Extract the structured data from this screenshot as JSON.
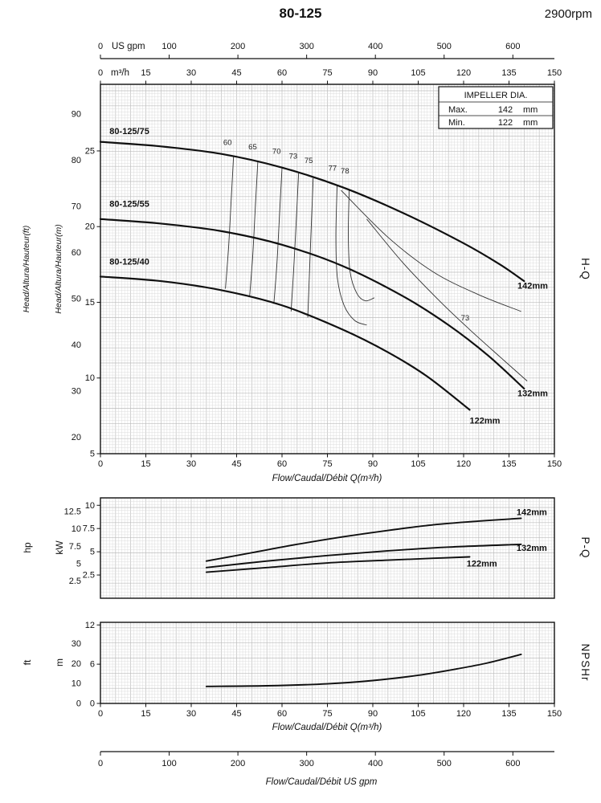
{
  "header": {
    "title": "80-125",
    "rpm": "2900rpm"
  },
  "legend": {
    "title": "IMPELLER DIA.",
    "rows": [
      {
        "label": "Max.",
        "value": "142",
        "unit": "mm"
      },
      {
        "label": "Min.",
        "value": "122",
        "unit": "mm"
      }
    ]
  },
  "labels": {
    "us_gpm": "US gpm",
    "m3h": "m³/h",
    "head_ft": "Head/Altura/Hauteur(ft)",
    "head_m": "Head/Altura/Hauteur(m)",
    "hp": "hp",
    "kw": "kW",
    "ft": "ft",
    "m": "m",
    "hq": "H-Q",
    "pq": "P-Q",
    "npsh": "NPSHr",
    "flow_q_hq": "Flow/Caudal/Débit Q(m³/h)",
    "flow_q_npsh": "Flow/Caudal/Débit Q(m³/h)",
    "flow_gpm": "Flow/Caudal/Débit US gpm"
  },
  "top_axis_gpm": {
    "unit": "US gpm",
    "ticks": [
      0,
      100,
      200,
      300,
      400,
      500,
      600
    ]
  },
  "bottom_axis_gpm": {
    "unit": "US gpm",
    "ticks": [
      0,
      100,
      200,
      300,
      400,
      500,
      600
    ]
  },
  "chart_data": [
    {
      "id": "hq",
      "type": "line",
      "name": "H-Q",
      "x": {
        "label": "Flow/Caudal/Débit Q(m³/h)",
        "range": [
          0,
          150
        ],
        "ticks": [
          0,
          15,
          30,
          45,
          60,
          75,
          90,
          105,
          120,
          135,
          150
        ]
      },
      "y": {
        "unit": "m",
        "label": "Head/Altura/Hauteur(m)",
        "range": [
          5,
          29.4
        ],
        "ticks": [
          5,
          10,
          15,
          20,
          25
        ]
      },
      "y2": {
        "unit": "ft",
        "label": "Head/Altura/Hauteur(ft)",
        "ticks": [
          20,
          30,
          40,
          50,
          60,
          70,
          80,
          90
        ],
        "factor": 0.3048
      },
      "series": [
        {
          "name": "80-125/75",
          "impeller": "142mm",
          "name_label_at": [
            3,
            26.1
          ],
          "end_label_at": [
            137.8,
            15.9
          ],
          "points": [
            [
              0,
              25.6
            ],
            [
              20,
              25.3
            ],
            [
              40,
              24.8
            ],
            [
              60,
              23.9
            ],
            [
              80,
              22.6
            ],
            [
              100,
              20.9
            ],
            [
              120,
              18.9
            ],
            [
              132,
              17.5
            ],
            [
              140,
              16.4
            ]
          ]
        },
        {
          "name": "80-125/55",
          "impeller": "132mm",
          "name_label_at": [
            3,
            21.3
          ],
          "end_label_at": [
            137.8,
            8.8
          ],
          "points": [
            [
              0,
              20.5
            ],
            [
              20,
              20.2
            ],
            [
              40,
              19.7
            ],
            [
              60,
              18.8
            ],
            [
              80,
              17.4
            ],
            [
              100,
              15.4
            ],
            [
              115,
              13.5
            ],
            [
              128,
              11.5
            ],
            [
              140,
              9.3
            ]
          ]
        },
        {
          "name": "80-125/40",
          "impeller": "122mm",
          "name_label_at": [
            3,
            17.5
          ],
          "end_label_at": [
            122,
            7.0
          ],
          "points": [
            [
              0,
              16.7
            ],
            [
              20,
              16.4
            ],
            [
              40,
              15.8
            ],
            [
              60,
              14.8
            ],
            [
              80,
              13.2
            ],
            [
              95,
              11.7
            ],
            [
              108,
              10.1
            ],
            [
              122,
              7.9
            ]
          ]
        }
      ],
      "efficiency": [
        {
          "label": "60",
          "label_at": [
            42,
            25.4
          ],
          "points": [
            [
              44,
              24.7
            ],
            [
              43,
              21.0
            ],
            [
              42.3,
              18.5
            ],
            [
              41.3,
              15.9
            ]
          ]
        },
        {
          "label": "65",
          "label_at": [
            50.3,
            25.1
          ],
          "points": [
            [
              52,
              24.3
            ],
            [
              51,
              20.6
            ],
            [
              50.3,
              18.0
            ],
            [
              49.3,
              15.4
            ]
          ]
        },
        {
          "label": "70",
          "label_at": [
            58.2,
            24.8
          ],
          "points": [
            [
              60,
              23.9
            ],
            [
              59,
              20.1
            ],
            [
              58.3,
              17.5
            ],
            [
              57.3,
              14.9
            ]
          ]
        },
        {
          "label": "73",
          "label_at": [
            63.7,
            24.5
          ],
          "points": [
            [
              65.5,
              23.6
            ],
            [
              64.5,
              19.6
            ],
            [
              63.8,
              17.0
            ],
            [
              63,
              14.4
            ]
          ]
        },
        {
          "label": "75",
          "label_at": [
            68.8,
            24.2
          ],
          "points": [
            [
              70.3,
              23.2
            ],
            [
              69.5,
              19.2
            ],
            [
              69,
              16.6
            ],
            [
              68.5,
              14.0
            ]
          ]
        },
        {
          "label": "77",
          "label_at": [
            76.7,
            23.7
          ],
          "points": [
            [
              78.2,
              22.7
            ],
            [
              77.8,
              19.3
            ],
            [
              78.3,
              16.6
            ],
            [
              80.5,
              14.8
            ],
            [
              84,
              13.8
            ],
            [
              88,
              13.5
            ]
          ]
        },
        {
          "label": "78",
          "label_at": [
            80.8,
            23.5
          ],
          "points": [
            [
              82.2,
              22.4
            ],
            [
              81.9,
              19.4
            ],
            [
              82.5,
              17.0
            ],
            [
              84.7,
              15.6
            ],
            [
              87.5,
              15.1
            ],
            [
              90.5,
              15.3
            ]
          ]
        },
        {
          "label": "",
          "label_at": null,
          "points": [
            [
              79.5,
              22.4
            ],
            [
              95,
              19.3
            ],
            [
              110,
              17.0
            ],
            [
              125,
              15.5
            ],
            [
              139,
              14.4
            ]
          ]
        },
        {
          "label": "73",
          "label_at": [
            120.5,
            13.8
          ],
          "points": [
            [
              88,
              20.5
            ],
            [
              100,
              17.6
            ],
            [
              112,
              15.1
            ],
            [
              122,
              13.2
            ],
            [
              132,
              11.4
            ],
            [
              141,
              9.8
            ]
          ]
        }
      ]
    },
    {
      "id": "pq",
      "type": "line",
      "name": "P-Q",
      "x": {
        "range": [
          0,
          150
        ],
        "ticks": [
          0,
          15,
          30,
          45,
          60,
          75,
          90,
          105,
          120,
          135,
          150
        ]
      },
      "y": {
        "unit": "kW",
        "label": "kW",
        "range": [
          0,
          10.8
        ],
        "ticks": [
          2.5,
          5,
          7.5,
          10
        ]
      },
      "y2": {
        "unit": "hp",
        "label": "hp",
        "ticks": [
          2.5,
          5,
          7.5,
          10,
          12.5
        ],
        "factor": 0.7457
      },
      "series": [
        {
          "name": "142mm",
          "end_label_at": [
            137.5,
            8.95
          ],
          "points": [
            [
              35,
              4.0
            ],
            [
              50,
              4.9
            ],
            [
              65,
              5.8
            ],
            [
              80,
              6.6
            ],
            [
              95,
              7.3
            ],
            [
              110,
              7.9
            ],
            [
              125,
              8.3
            ],
            [
              139,
              8.6
            ]
          ]
        },
        {
          "name": "132mm",
          "end_label_at": [
            137.5,
            5.1
          ],
          "points": [
            [
              35,
              3.3
            ],
            [
              55,
              4.0
            ],
            [
              75,
              4.6
            ],
            [
              95,
              5.1
            ],
            [
              115,
              5.5
            ],
            [
              139,
              5.8
            ]
          ]
        },
        {
          "name": "122mm",
          "end_label_at": [
            121,
            3.4
          ],
          "points": [
            [
              35,
              2.8
            ],
            [
              55,
              3.3
            ],
            [
              75,
              3.8
            ],
            [
              95,
              4.1
            ],
            [
              110,
              4.3
            ],
            [
              122,
              4.45
            ]
          ]
        }
      ]
    },
    {
      "id": "npsh",
      "type": "line",
      "name": "NPSHr",
      "x": {
        "label": "Flow/Caudal/Débit Q(m³/h)",
        "range": [
          0,
          150
        ],
        "ticks": [
          0,
          15,
          30,
          45,
          60,
          75,
          90,
          105,
          120,
          135,
          150
        ]
      },
      "y": {
        "unit": "m",
        "label": "m",
        "range": [
          0,
          12.4
        ],
        "ticks": [
          0,
          6,
          12
        ]
      },
      "y2": {
        "unit": "ft",
        "label": "ft",
        "ticks": [
          0,
          10,
          20,
          30
        ],
        "factor": 0.3048
      },
      "series": [
        {
          "name": "NPSHr",
          "points": [
            [
              35,
              2.6
            ],
            [
              55,
              2.7
            ],
            [
              75,
              3.0
            ],
            [
              90,
              3.5
            ],
            [
              105,
              4.3
            ],
            [
              118,
              5.3
            ],
            [
              128,
              6.2
            ],
            [
              139,
              7.5
            ]
          ]
        }
      ]
    }
  ]
}
